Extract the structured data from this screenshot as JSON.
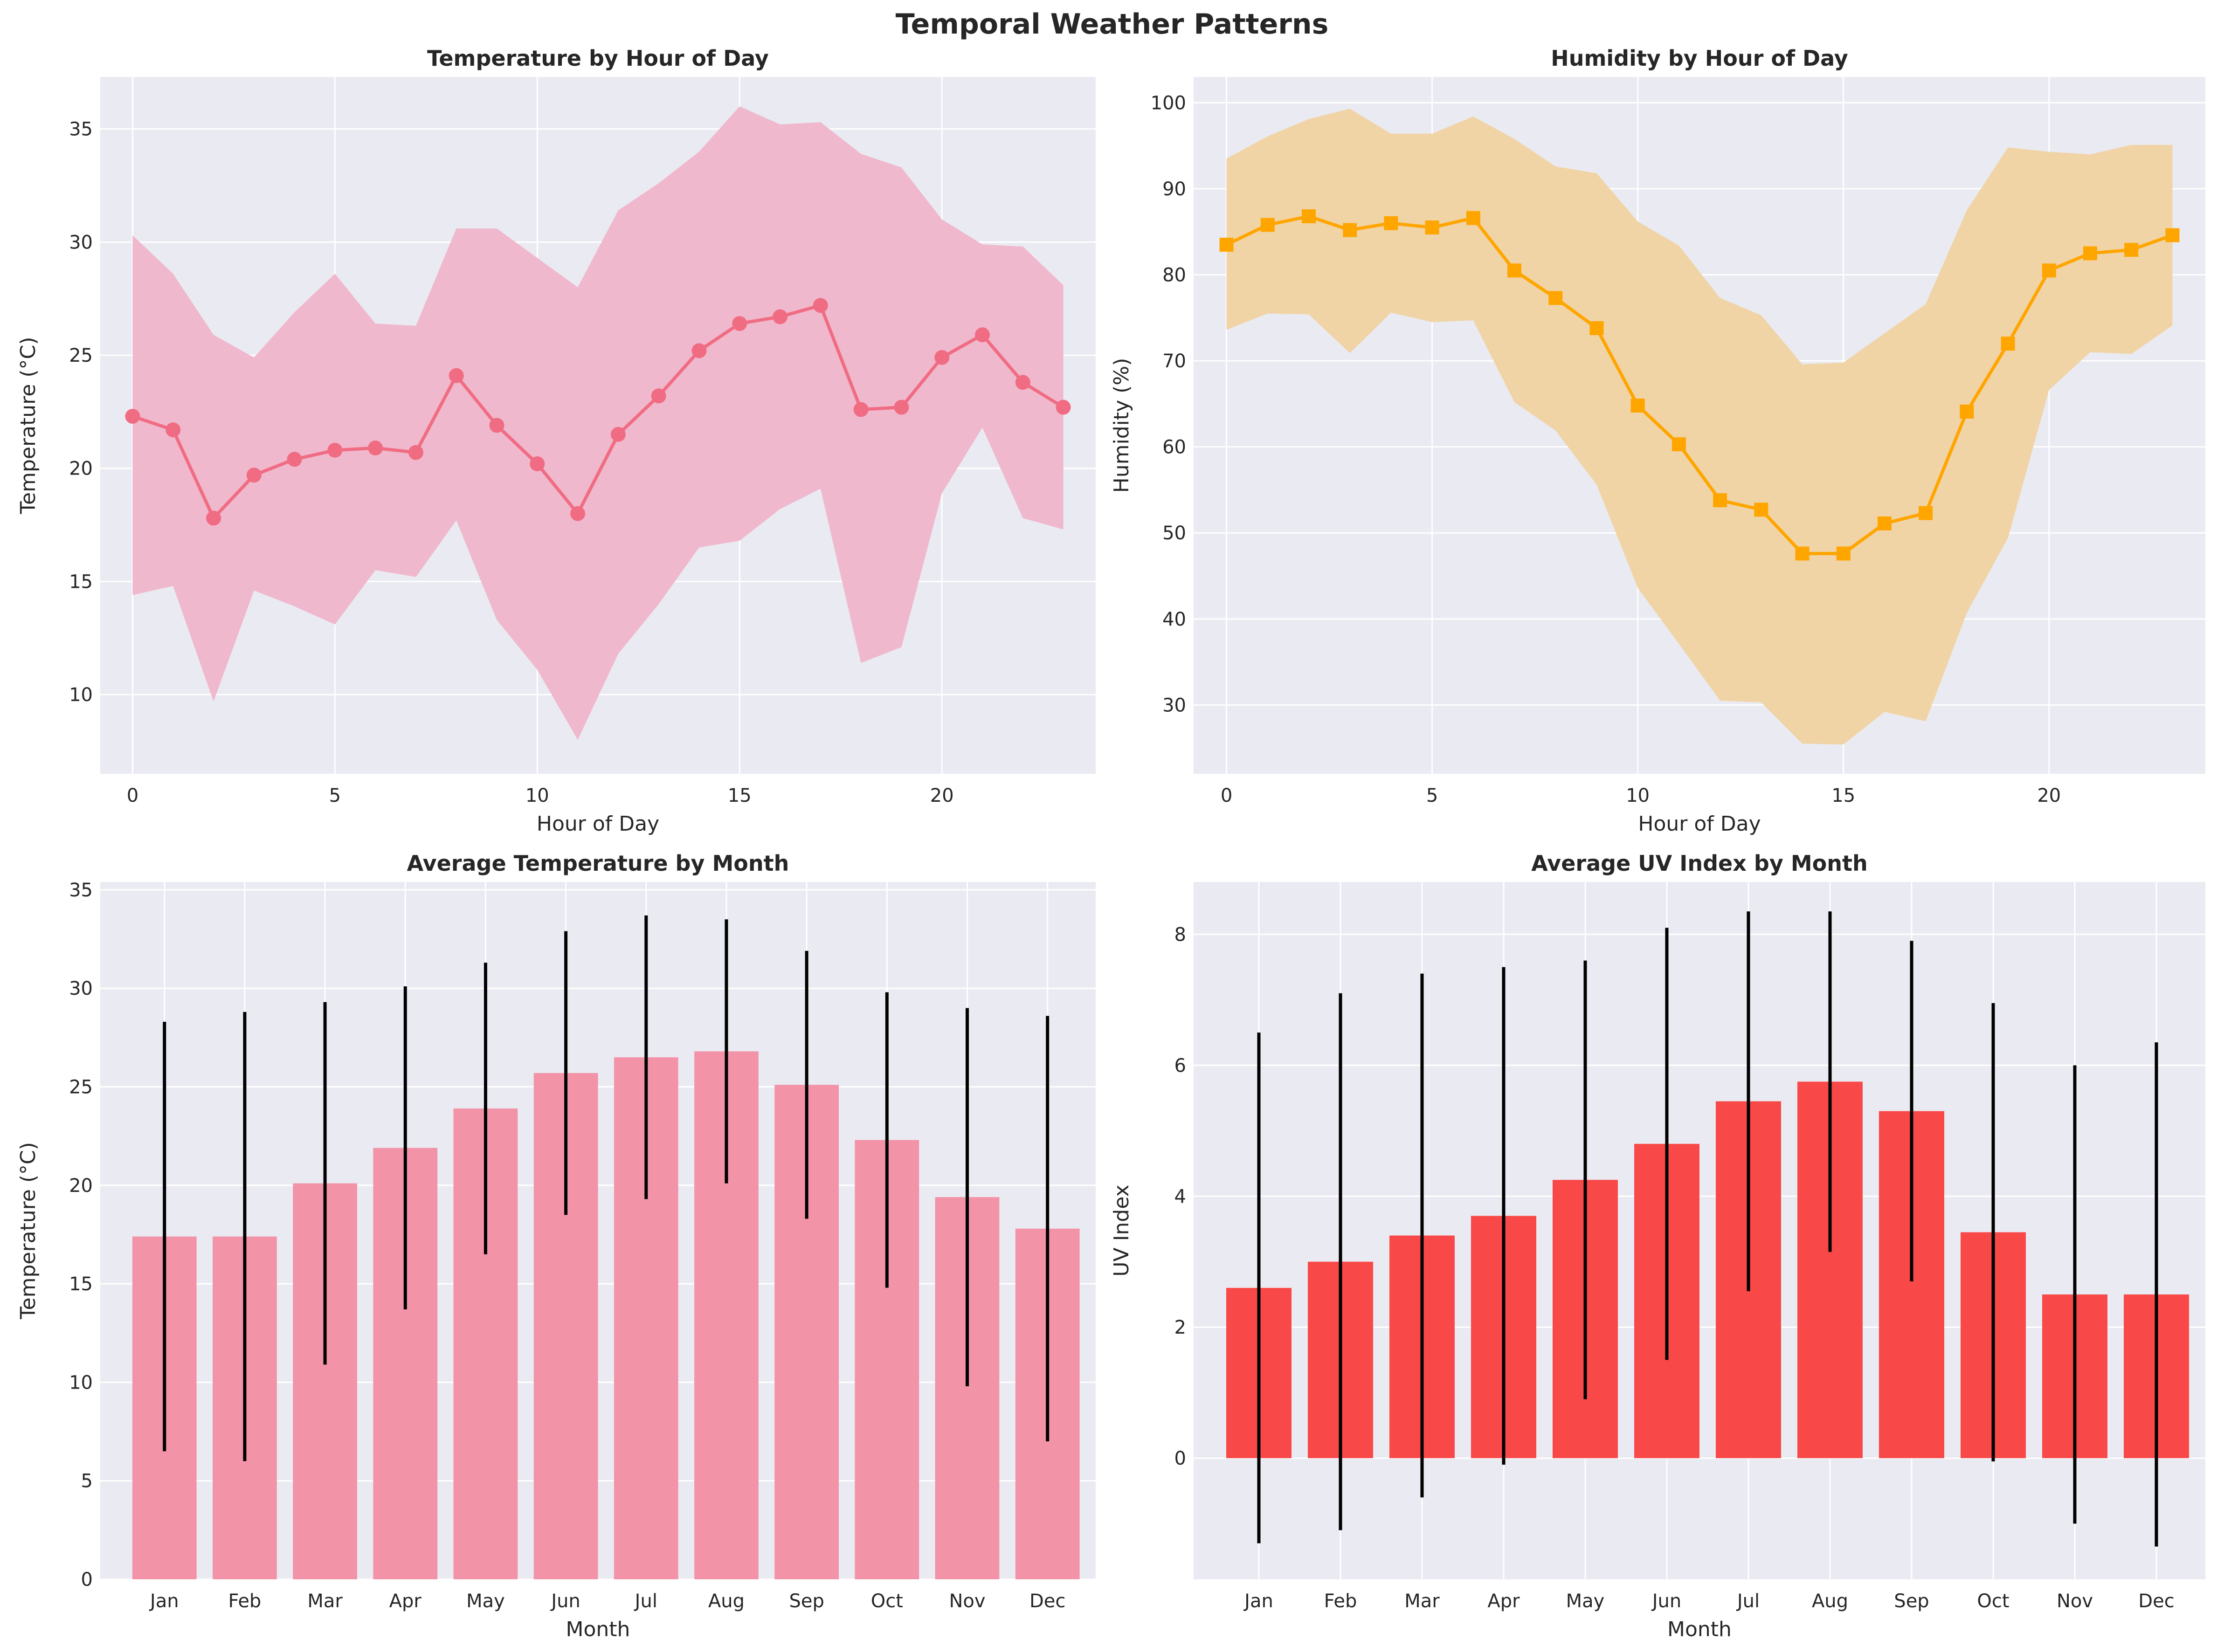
{
  "figure": {
    "title": "Temporal Weather Patterns"
  },
  "chart_data": [
    {
      "type": "line",
      "title": "Temperature by Hour of Day",
      "xlabel": "Hour of Day",
      "ylabel": "Temperature (°C)",
      "xlim": [
        -0.8,
        23.8
      ],
      "ylim": [
        6.5,
        37.3
      ],
      "xticks": [
        0,
        5,
        10,
        15,
        20
      ],
      "yticks": [
        10,
        15,
        20,
        25,
        30,
        35
      ],
      "grid": true,
      "color": "#f06c83",
      "band_color": "#f0b8cc",
      "marker": "circle",
      "x": [
        0,
        1,
        2,
        3,
        4,
        5,
        6,
        7,
        8,
        9,
        10,
        11,
        12,
        13,
        14,
        15,
        16,
        17,
        18,
        19,
        20,
        21,
        22,
        23
      ],
      "y": [
        22.3,
        21.7,
        17.8,
        19.7,
        20.4,
        20.8,
        20.9,
        20.7,
        24.1,
        21.9,
        20.2,
        18.0,
        21.5,
        23.2,
        25.2,
        26.4,
        26.7,
        27.2,
        22.6,
        22.7,
        24.9,
        25.9,
        23.8,
        22.7
      ],
      "band_upper": [
        30.3,
        28.6,
        25.9,
        24.9,
        26.9,
        28.6,
        26.4,
        26.3,
        30.6,
        30.6,
        29.3,
        28.0,
        31.4,
        32.6,
        34.0,
        36.0,
        35.2,
        35.3,
        33.9,
        33.3,
        31.0,
        29.9,
        29.8,
        28.1
      ],
      "band_lower": [
        14.4,
        14.8,
        9.7,
        14.6,
        13.9,
        13.1,
        15.5,
        15.2,
        17.7,
        13.3,
        11.1,
        8.0,
        11.8,
        14.0,
        16.5,
        16.8,
        18.2,
        19.1,
        11.4,
        12.1,
        18.9,
        21.8,
        17.8,
        17.3
      ]
    },
    {
      "type": "line",
      "title": "Humidity by Hour of Day",
      "xlabel": "Hour of Day",
      "ylabel": "Humidity (%)",
      "xlim": [
        -0.8,
        23.8
      ],
      "ylim": [
        22,
        103
      ],
      "xticks": [
        0,
        5,
        10,
        15,
        20
      ],
      "yticks": [
        30,
        40,
        50,
        60,
        70,
        80,
        90,
        100
      ],
      "grid": true,
      "color": "#ffa500",
      "band_color": "#f0d4a6",
      "marker": "square",
      "x": [
        0,
        1,
        2,
        3,
        4,
        5,
        6,
        7,
        8,
        9,
        10,
        11,
        12,
        13,
        14,
        15,
        16,
        17,
        18,
        19,
        20,
        21,
        22,
        23
      ],
      "y": [
        83.5,
        85.8,
        86.8,
        85.2,
        86.0,
        85.5,
        86.6,
        80.5,
        77.3,
        73.8,
        64.8,
        60.3,
        53.8,
        52.7,
        47.6,
        47.6,
        51.1,
        52.3,
        64.1,
        72.0,
        80.5,
        82.5,
        82.9,
        84.6
      ],
      "band_upper": [
        93.5,
        96.1,
        98.1,
        99.3,
        96.4,
        96.4,
        98.4,
        95.8,
        92.6,
        91.8,
        86.2,
        83.4,
        77.3,
        75.3,
        69.6,
        69.8,
        73.2,
        76.6,
        87.5,
        94.8,
        94.3,
        94.0,
        95.1,
        95.1
      ],
      "band_lower": [
        73.6,
        75.5,
        75.4,
        70.9,
        75.6,
        74.5,
        74.7,
        65.2,
        61.9,
        55.6,
        43.6,
        37.1,
        30.5,
        30.3,
        25.5,
        25.4,
        29.2,
        28.1,
        40.7,
        49.4,
        66.6,
        71.0,
        70.8,
        74.1
      ]
    },
    {
      "type": "bar",
      "title": "Average Temperature by Month",
      "xlabel": "Month",
      "ylabel": "Temperature (°C)",
      "xlim": [
        -0.8,
        11.6
      ],
      "ylim": [
        0,
        35.4
      ],
      "yticks": [
        0,
        5,
        10,
        15,
        20,
        25,
        30,
        35
      ],
      "grid": true,
      "color": "#f293a8",
      "categories": [
        "Jan",
        "Feb",
        "Mar",
        "Apr",
        "May",
        "Jun",
        "Jul",
        "Aug",
        "Sep",
        "Oct",
        "Nov",
        "Dec"
      ],
      "values": [
        17.4,
        17.4,
        20.1,
        21.9,
        23.9,
        25.7,
        26.5,
        26.8,
        25.1,
        22.3,
        19.4,
        17.8
      ],
      "error": [
        10.9,
        11.4,
        9.2,
        8.2,
        7.4,
        7.2,
        7.2,
        6.7,
        6.8,
        7.5,
        9.6,
        10.8
      ]
    },
    {
      "type": "bar",
      "title": "Average UV Index by Month",
      "xlabel": "Month",
      "ylabel": "UV Index",
      "xlim": [
        -0.8,
        11.6
      ],
      "ylim": [
        -1.85,
        8.8
      ],
      "yticks": [
        0,
        2,
        4,
        6,
        8
      ],
      "grid": true,
      "color": "#f94848",
      "categories": [
        "Jan",
        "Feb",
        "Mar",
        "Apr",
        "May",
        "Jun",
        "Jul",
        "Aug",
        "Sep",
        "Oct",
        "Nov",
        "Dec"
      ],
      "values": [
        2.6,
        3.0,
        3.4,
        3.7,
        4.25,
        4.8,
        5.45,
        5.75,
        5.3,
        3.45,
        2.5,
        2.5
      ],
      "error": [
        3.9,
        4.1,
        4.0,
        3.8,
        3.35,
        3.3,
        2.9,
        2.6,
        2.6,
        3.5,
        3.5,
        3.85
      ]
    }
  ]
}
